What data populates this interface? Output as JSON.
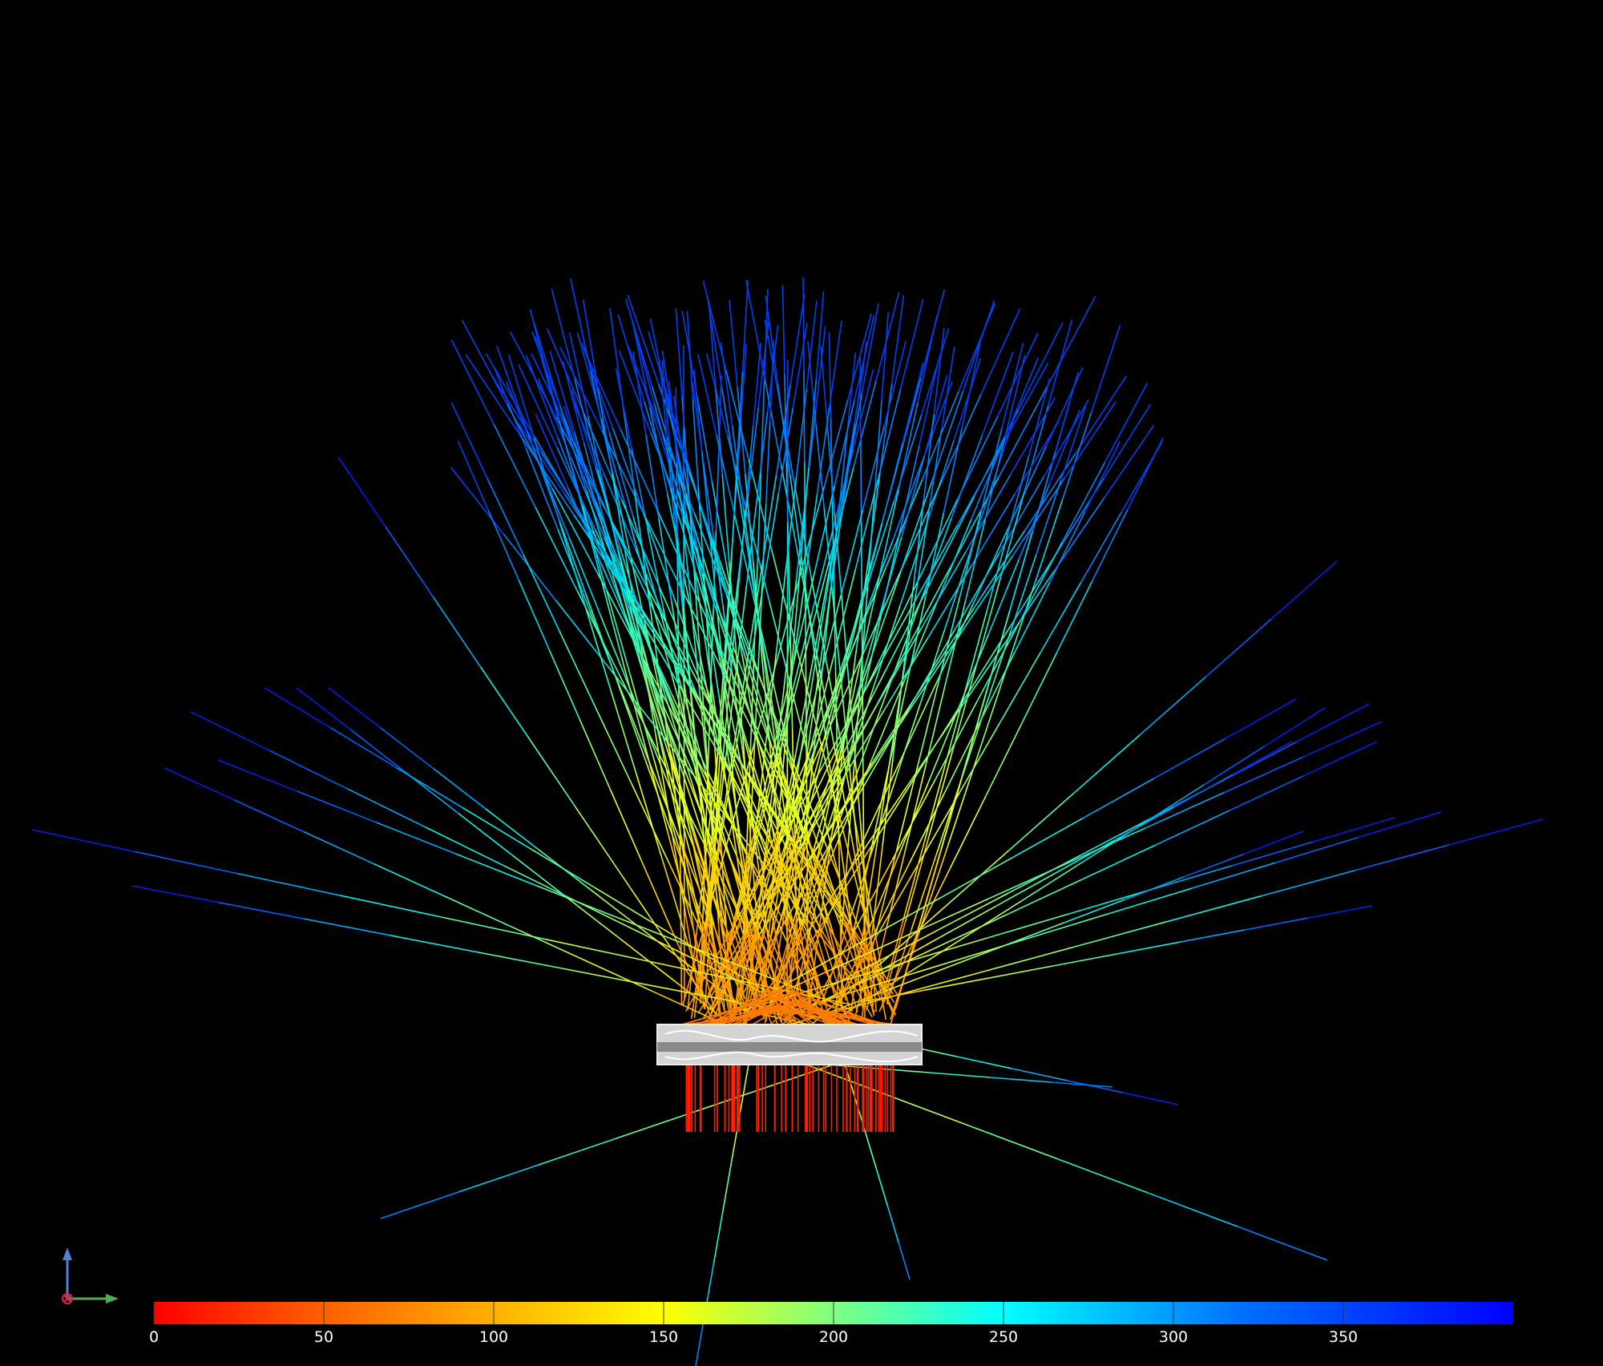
{
  "view": {
    "background": "#000000",
    "ray_color_map": "red-yellow-cyan-blue",
    "element_fill": "#d9d9d9"
  },
  "triad": {
    "up_axis_color": "#4f7fd6",
    "right_axis_color": "#4fb04f",
    "out_axis_color": "#e0204a"
  },
  "color_legend": {
    "min": 0,
    "max": 400,
    "ticks": [
      "0",
      "50",
      "100",
      "150",
      "200",
      "250",
      "300",
      "350"
    ],
    "stops": [
      "#ff0000",
      "#ff8000",
      "#ffff00",
      "#80ff80",
      "#00ffff",
      "#0080ff",
      "#0000ff"
    ]
  }
}
